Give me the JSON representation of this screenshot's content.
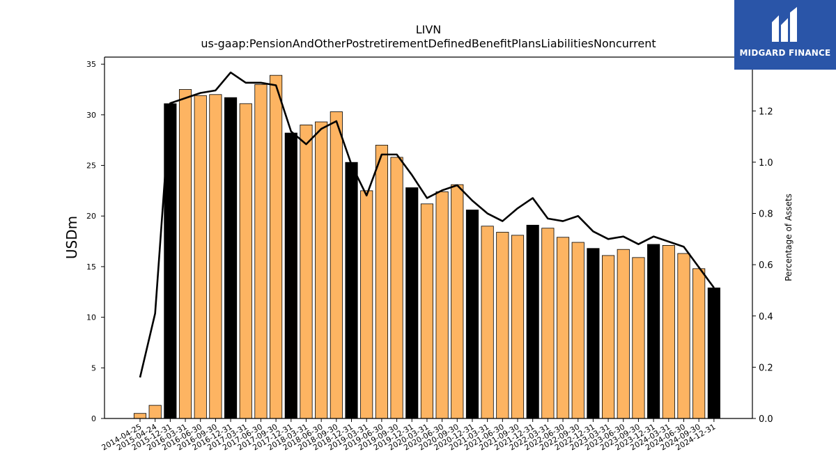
{
  "brand": {
    "name": "MIDGARD FINANCE"
  },
  "chart_data": {
    "type": "bar",
    "title": "LIVN",
    "subtitle": "us-gaap:PensionAndOtherPostretirementDefinedBenefitPlansLiabilitiesNoncurrent",
    "ylabel": "USDm",
    "y2label": "Percentage of Assets",
    "ylim": [
      0,
      35.7
    ],
    "y2lim": [
      0,
      1.41
    ],
    "yticks": [
      0,
      5,
      10,
      15,
      20,
      25,
      30,
      35
    ],
    "y2ticks": [
      0.0,
      0.2,
      0.4,
      0.6,
      0.8,
      1.0,
      1.2
    ],
    "grid": false,
    "colors": {
      "annual": "#000000",
      "quarterly": "#fdb462",
      "line": "#000000"
    },
    "categories": [
      "2014-04-25",
      "2015-04-24",
      "2015-12-31",
      "2016-03-31",
      "2016-06-30",
      "2016-09-30",
      "2016-12-31",
      "2017-03-31",
      "2017-06-30",
      "2017-09-30",
      "2017-12-31",
      "2018-03-31",
      "2018-06-30",
      "2018-09-30",
      "2018-12-31",
      "2019-03-31",
      "2019-06-30",
      "2019-09-30",
      "2019-12-31",
      "2020-03-31",
      "2020-06-30",
      "2020-09-30",
      "2020-12-31",
      "2021-03-31",
      "2021-06-30",
      "2021-09-30",
      "2021-12-31",
      "2022-03-31",
      "2022-06-30",
      "2022-09-30",
      "2022-12-31",
      "2023-03-31",
      "2023-06-30",
      "2023-09-30",
      "2023-12-31",
      "2024-03-31",
      "2024-06-30",
      "2024-09-30",
      "2024-12-31"
    ],
    "series": [
      {
        "kind": "bar",
        "values": [
          0.5,
          1.3,
          31.1,
          32.5,
          31.9,
          32.0,
          31.7,
          31.1,
          33.0,
          33.9,
          28.2,
          29.0,
          29.3,
          30.3,
          25.3,
          22.5,
          27.0,
          25.8,
          22.8,
          21.2,
          22.4,
          23.1,
          20.6,
          19.0,
          18.4,
          18.1,
          19.1,
          18.8,
          17.9,
          17.4,
          16.8,
          16.1,
          16.7,
          15.9,
          17.2,
          17.1,
          16.3,
          14.8,
          12.9
        ],
        "annual": [
          false,
          false,
          true,
          false,
          false,
          false,
          true,
          false,
          false,
          false,
          true,
          false,
          false,
          false,
          true,
          false,
          false,
          false,
          true,
          false,
          false,
          false,
          true,
          false,
          false,
          false,
          true,
          false,
          false,
          false,
          true,
          false,
          false,
          false,
          true,
          false,
          false,
          false,
          true
        ]
      },
      {
        "kind": "line",
        "axis": "right",
        "values": [
          0.16,
          0.41,
          1.23,
          1.25,
          1.27,
          1.28,
          1.35,
          1.31,
          1.31,
          1.3,
          1.12,
          1.07,
          1.13,
          1.16,
          0.99,
          0.87,
          1.03,
          1.03,
          0.95,
          0.86,
          0.89,
          0.91,
          0.85,
          0.8,
          0.77,
          0.82,
          0.86,
          0.78,
          0.77,
          0.79,
          0.73,
          0.7,
          0.71,
          0.68,
          0.71,
          0.69,
          0.67,
          0.59,
          0.51
        ]
      }
    ]
  }
}
